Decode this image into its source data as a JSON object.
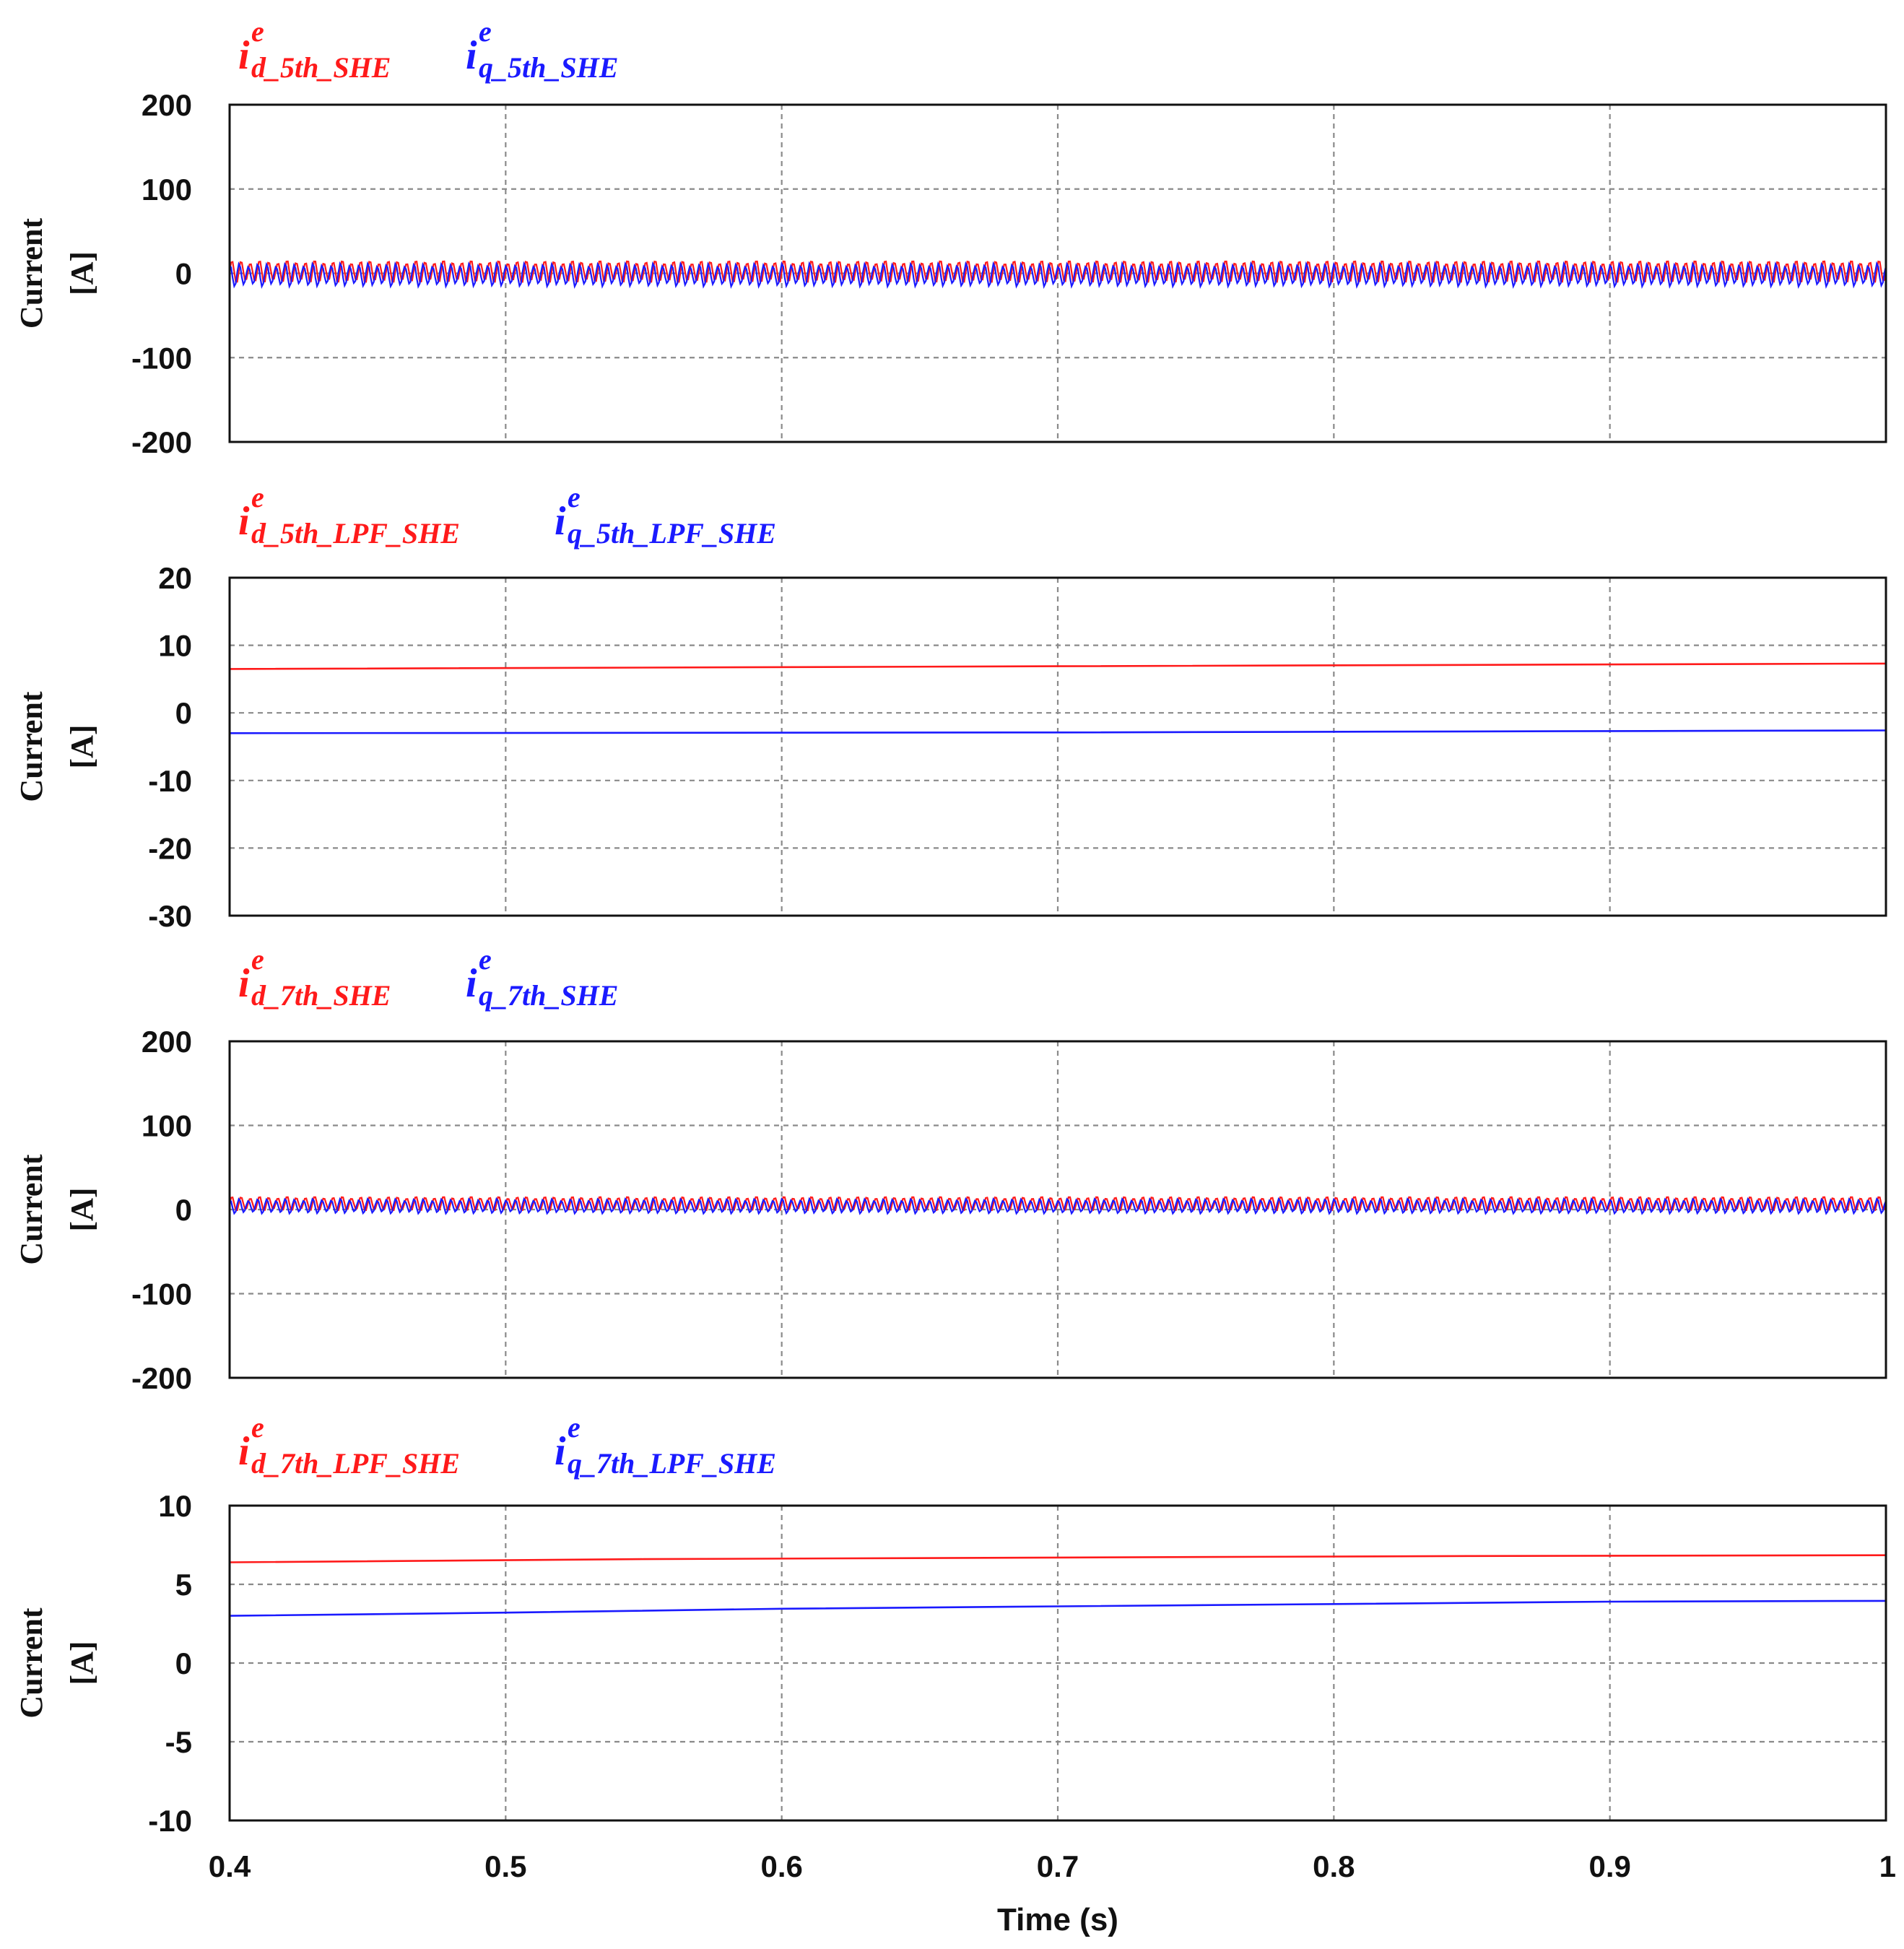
{
  "chart_data": [
    {
      "type": "line",
      "title": "",
      "xlabel": "",
      "ylabel": [
        "Current",
        "[A]"
      ],
      "xlim": [
        0.4,
        1.0
      ],
      "ylim": [
        -200,
        200
      ],
      "yticks": [
        200,
        100,
        0,
        -100,
        -200
      ],
      "ytick_labels": [
        "200",
        "100",
        "0",
        "-100",
        "-200"
      ],
      "grid": true,
      "legend": [
        {
          "symbol": "i",
          "sup": "e",
          "sub": "d_5th_SHE",
          "color": "#ff1a1a"
        },
        {
          "symbol": "i",
          "sup": "e",
          "sub": "q_5th_SHE",
          "color": "#1a1aff"
        }
      ],
      "series": [
        {
          "name": "i_d_5th_SHE",
          "color": "#ff1a1a",
          "kind": "ripple",
          "mean": 2,
          "amplitude": 14,
          "cycles": 180
        },
        {
          "name": "i_q_5th_SHE",
          "color": "#1a1aff",
          "kind": "ripple",
          "mean": -2,
          "amplitude": 14,
          "cycles": 180
        }
      ]
    },
    {
      "type": "line",
      "title": "",
      "xlabel": "",
      "ylabel": [
        "Current",
        "[A]"
      ],
      "xlim": [
        0.4,
        1.0
      ],
      "ylim": [
        -30,
        20
      ],
      "yticks": [
        20,
        10,
        0,
        -10,
        -20,
        -30
      ],
      "ytick_labels": [
        "20",
        "10",
        "0",
        "-10",
        "-20",
        "-30"
      ],
      "grid": true,
      "legend": [
        {
          "symbol": "i",
          "sup": "e",
          "sub": "d_5th_LPF_SHE",
          "color": "#ff1a1a"
        },
        {
          "symbol": "i",
          "sup": "e",
          "sub": "q_5th_LPF_SHE",
          "color": "#1a1aff"
        }
      ],
      "series": [
        {
          "name": "i_d_5th_LPF_SHE",
          "color": "#ff1a1a",
          "kind": "line",
          "x": [
            0.4,
            0.7,
            1.0
          ],
          "y": [
            6.5,
            6.9,
            7.3
          ]
        },
        {
          "name": "i_q_5th_LPF_SHE",
          "color": "#1a1aff",
          "kind": "line",
          "x": [
            0.4,
            0.7,
            1.0
          ],
          "y": [
            -3.0,
            -2.9,
            -2.6
          ]
        }
      ]
    },
    {
      "type": "line",
      "title": "",
      "xlabel": "",
      "ylabel": [
        "Current",
        "[A]"
      ],
      "xlim": [
        0.4,
        1.0
      ],
      "ylim": [
        -200,
        200
      ],
      "yticks": [
        200,
        100,
        0,
        -100,
        -200
      ],
      "ytick_labels": [
        "200",
        "100",
        "0",
        "-100",
        "-200"
      ],
      "grid": true,
      "legend": [
        {
          "symbol": "i",
          "sup": "e",
          "sub": "d_7th_SHE",
          "color": "#ff1a1a"
        },
        {
          "symbol": "i",
          "sup": "e",
          "sub": "q_7th_SHE",
          "color": "#1a1aff"
        }
      ],
      "series": [
        {
          "name": "i_d_7th_SHE",
          "color": "#ff1a1a",
          "kind": "ripple",
          "mean": 7,
          "amplitude": 9,
          "cycles": 180
        },
        {
          "name": "i_q_7th_SHE",
          "color": "#1a1aff",
          "kind": "ripple",
          "mean": 4,
          "amplitude": 9,
          "cycles": 180
        }
      ]
    },
    {
      "type": "line",
      "title": "",
      "xlabel": "Time (s)",
      "ylabel": [
        "Current",
        "[A]"
      ],
      "xlim": [
        0.4,
        1.0
      ],
      "ylim": [
        -10,
        10
      ],
      "yticks": [
        10,
        5,
        0,
        -5,
        -10
      ],
      "ytick_labels": [
        "10",
        "5",
        "0",
        "-5",
        "-10"
      ],
      "xticks": [
        0.4,
        0.5,
        0.6,
        0.7,
        0.8,
        0.9,
        1.0
      ],
      "xtick_labels": [
        "0.4",
        "0.5",
        "0.6",
        "0.7",
        "0.8",
        "0.9",
        "1"
      ],
      "grid": true,
      "legend": [
        {
          "symbol": "i",
          "sup": "e",
          "sub": "d_7th_LPF_SHE",
          "color": "#ff1a1a"
        },
        {
          "symbol": "i",
          "sup": "e",
          "sub": "q_7th_LPF_SHE",
          "color": "#1a1aff"
        }
      ],
      "series": [
        {
          "name": "i_d_7th_LPF_SHE",
          "color": "#ff1a1a",
          "kind": "line",
          "x": [
            0.4,
            0.55,
            0.7,
            0.85,
            1.0
          ],
          "y": [
            6.4,
            6.6,
            6.7,
            6.8,
            6.85
          ]
        },
        {
          "name": "i_q_7th_LPF_SHE",
          "color": "#1a1aff",
          "kind": "line",
          "x": [
            0.4,
            0.5,
            0.6,
            0.7,
            0.8,
            0.9,
            1.0
          ],
          "y": [
            3.0,
            3.2,
            3.45,
            3.6,
            3.75,
            3.9,
            3.95
          ]
        }
      ]
    }
  ]
}
